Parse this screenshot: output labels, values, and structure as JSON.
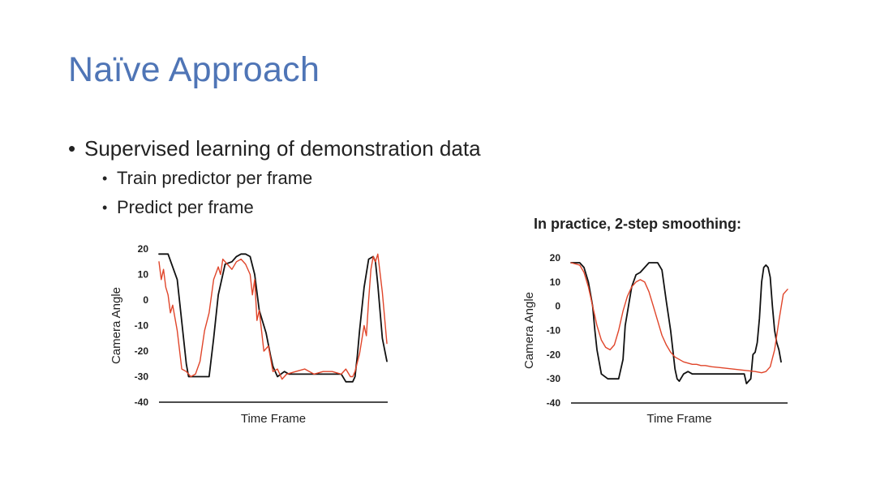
{
  "slide": {
    "title": "Naïve Approach",
    "title_color": "#4F75B6",
    "bullets": [
      {
        "text": "Supervised learning of demonstration data",
        "sub": [
          "Train predictor per frame",
          "Predict per frame"
        ]
      }
    ]
  },
  "chart_data": [
    {
      "type": "line",
      "title": "",
      "xlabel": "Time Frame",
      "ylabel": "Camera Angle",
      "ylim": [
        -40,
        20
      ],
      "yticks": [
        20,
        10,
        0,
        -10,
        -20,
        -30,
        -40
      ],
      "grid": false,
      "series": [
        {
          "color": "#111111",
          "x": [
            0,
            4,
            8,
            12,
            13,
            17,
            22,
            24,
            26,
            29,
            32,
            34,
            36,
            38,
            40,
            42,
            44,
            47,
            49,
            50,
            52,
            55,
            57,
            60,
            65,
            70,
            75,
            80,
            82,
            84,
            85,
            86,
            87,
            88,
            90,
            92,
            94,
            95,
            96,
            98,
            100
          ],
          "y": [
            18,
            18,
            8,
            -25,
            -30,
            -30,
            -30,
            -15,
            2,
            14,
            15,
            17,
            18,
            18,
            17,
            10,
            -4,
            -13,
            -22,
            -26,
            -30,
            -28,
            -29,
            -29,
            -29,
            -29,
            -29,
            -29,
            -32,
            -32,
            -32,
            -30,
            -22,
            -12,
            5,
            16,
            17,
            15,
            6,
            -15,
            -24
          ]
        },
        {
          "color": "#E0452A",
          "x": [
            0,
            1,
            2,
            3,
            4,
            5,
            6,
            8,
            10,
            12,
            14,
            16,
            18,
            20,
            22,
            24,
            26,
            27,
            28,
            30,
            32,
            34,
            36,
            38,
            40,
            41,
            42,
            43,
            44,
            46,
            48,
            50,
            52,
            54,
            56,
            60,
            64,
            68,
            72,
            76,
            80,
            82,
            84,
            85,
            86,
            88,
            90,
            91,
            92,
            93,
            94,
            95,
            96,
            98,
            100
          ],
          "y": [
            15,
            8,
            12,
            5,
            2,
            -5,
            -2,
            -12,
            -27,
            -28,
            -30,
            -29,
            -24,
            -12,
            -5,
            8,
            13,
            10,
            16,
            14,
            12,
            15,
            16,
            14,
            10,
            2,
            8,
            -8,
            -4,
            -20,
            -18,
            -28,
            -27,
            -31,
            -29,
            -28,
            -27,
            -29,
            -28,
            -28,
            -29,
            -27,
            -30,
            -30,
            -28,
            -21,
            -10,
            -14,
            0,
            12,
            17,
            15,
            18,
            3,
            -17
          ]
        }
      ]
    },
    {
      "type": "line",
      "title": "In practice, 2-step smoothing:",
      "xlabel": "Time Frame",
      "ylabel": "Camera Angle",
      "ylim": [
        -40,
        20
      ],
      "yticks": [
        20,
        10,
        0,
        -10,
        -20,
        -30,
        -40
      ],
      "grid": false,
      "series": [
        {
          "color": "#111111",
          "x": [
            0,
            4,
            6,
            8,
            10,
            11,
            12,
            14,
            17,
            20,
            22,
            24,
            25,
            28,
            30,
            32,
            34,
            36,
            38,
            40,
            42,
            44,
            46,
            47,
            48,
            49,
            50,
            52,
            54,
            56,
            60,
            65,
            70,
            75,
            78,
            80,
            81,
            82,
            83,
            84,
            85,
            86,
            87,
            88,
            89,
            90,
            91,
            92,
            93,
            94,
            95,
            96,
            97
          ],
          "y": [
            18,
            18,
            16,
            10,
            0,
            -10,
            -18,
            -28,
            -30,
            -30,
            -30,
            -22,
            -8,
            8,
            13,
            14,
            16,
            18,
            18,
            18,
            15,
            2,
            -10,
            -18,
            -26,
            -30,
            -31,
            -28,
            -27,
            -28,
            -28,
            -28,
            -28,
            -28,
            -28,
            -28,
            -32,
            -31,
            -30,
            -20,
            -19,
            -15,
            -5,
            10,
            16,
            17,
            16,
            12,
            0,
            -10,
            -15,
            -18,
            -23
          ]
        },
        {
          "color": "#E0452A",
          "x": [
            0,
            4,
            6,
            8,
            10,
            12,
            14,
            16,
            18,
            20,
            22,
            24,
            26,
            28,
            30,
            32,
            34,
            36,
            38,
            40,
            42,
            44,
            46,
            48,
            50,
            52,
            54,
            56,
            58,
            60,
            62,
            65,
            70,
            75,
            80,
            85,
            88,
            90,
            92,
            94,
            96,
            98,
            100
          ],
          "y": [
            18,
            17,
            14,
            8,
            0,
            -8,
            -14,
            -17,
            -18,
            -16,
            -10,
            -2,
            4,
            8,
            10,
            11,
            10,
            6,
            0,
            -6,
            -12,
            -16,
            -19,
            -21,
            -22,
            -23,
            -23.5,
            -24,
            -24,
            -24.5,
            -24.5,
            -25,
            -25.5,
            -26,
            -26.5,
            -27,
            -27.5,
            -27,
            -25,
            -18,
            -6,
            5,
            7
          ]
        }
      ]
    }
  ]
}
